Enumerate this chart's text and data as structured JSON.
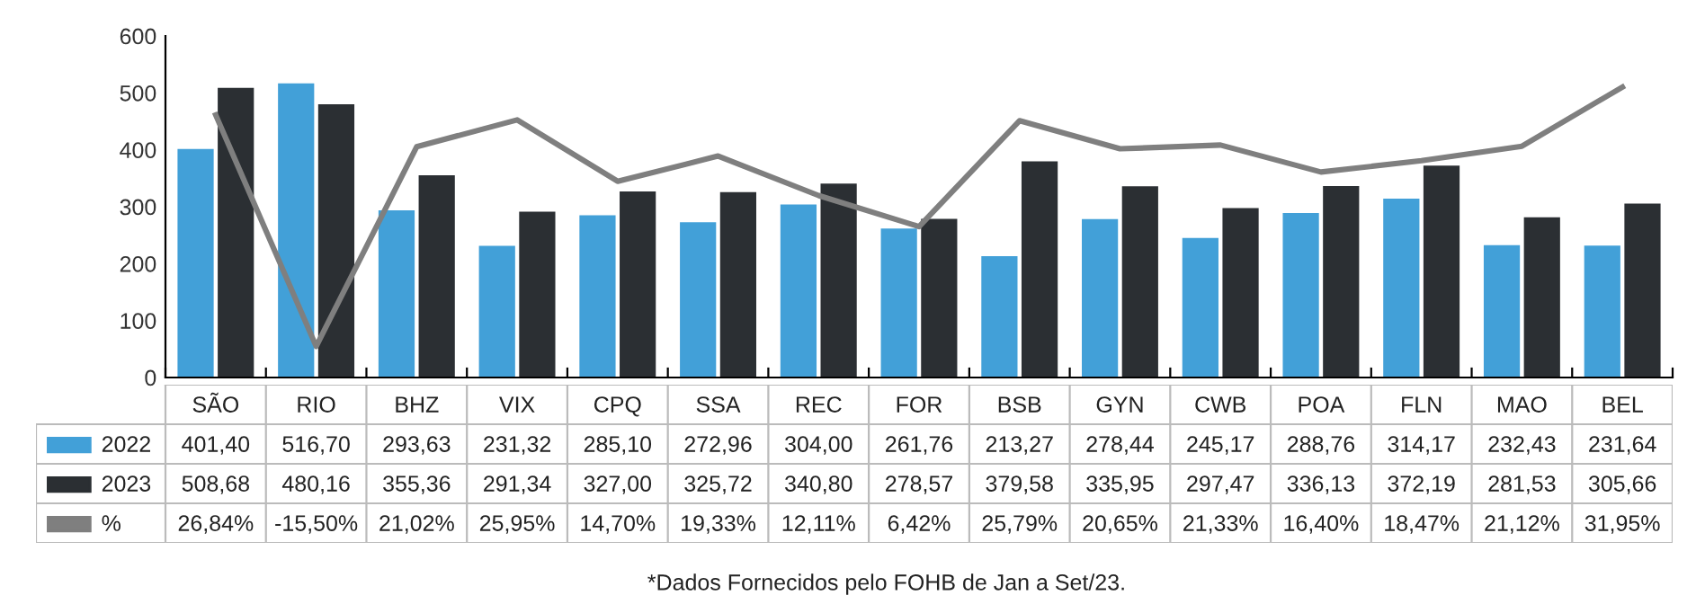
{
  "chart_data": {
    "type": "bar",
    "categories": [
      "SÃO",
      "RIO",
      "BHZ",
      "VIX",
      "CPQ",
      "SSA",
      "REC",
      "FOR",
      "BSB",
      "GYN",
      "CWB",
      "POA",
      "FLN",
      "MAO",
      "BEL"
    ],
    "series": [
      {
        "name": "2022",
        "color": "#42a0d8",
        "values": [
          401.4,
          516.7,
          293.63,
          231.32,
          285.1,
          272.96,
          304.0,
          261.76,
          213.27,
          278.44,
          245.17,
          288.76,
          314.17,
          232.43,
          231.64
        ],
        "value_labels": [
          "401,40",
          "516,70",
          "293,63",
          "231,32",
          "285,10",
          "272,96",
          "304,00",
          "261,76",
          "213,27",
          "278,44",
          "245,17",
          "288,76",
          "314,17",
          "232,43",
          "231,64"
        ]
      },
      {
        "name": "2023",
        "color": "#2b2f33",
        "values": [
          508.68,
          480.16,
          355.36,
          291.34,
          327.0,
          325.72,
          340.8,
          278.57,
          379.58,
          335.95,
          297.47,
          336.13,
          372.19,
          281.53,
          305.66
        ],
        "value_labels": [
          "508,68",
          "480,16",
          "355,36",
          "291,34",
          "327,00",
          "325,72",
          "340,80",
          "278,57",
          "379,58",
          "335,95",
          "297,47",
          "336,13",
          "372,19",
          "281,53",
          "305,66"
        ]
      },
      {
        "name": "%",
        "type": "line",
        "axis": "y2",
        "color": "#7f7f7f",
        "values": [
          26.84,
          -15.5,
          21.02,
          25.95,
          14.7,
          19.33,
          12.11,
          6.42,
          25.79,
          20.65,
          21.33,
          16.4,
          18.47,
          21.12,
          31.95
        ],
        "value_labels": [
          "26,84%",
          "-15,50%",
          "21,02%",
          "25,95%",
          "14,70%",
          "19,33%",
          "12,11%",
          "6,42%",
          "25,79%",
          "20,65%",
          "21,33%",
          "16,40%",
          "18,47%",
          "21,12%",
          "31,95%"
        ]
      }
    ],
    "ylim": [
      0,
      600
    ],
    "yticks": [
      0,
      100,
      200,
      300,
      400,
      500,
      600
    ],
    "y2lim": [
      -21.2,
      41.3
    ],
    "data_labels": true,
    "legend": "bottom left",
    "grid": false,
    "marker": "none",
    "line_style": "solid",
    "annotations": [
      "*Dados Fornecidos pelo FOHB de Jan a Set/23."
    ]
  }
}
